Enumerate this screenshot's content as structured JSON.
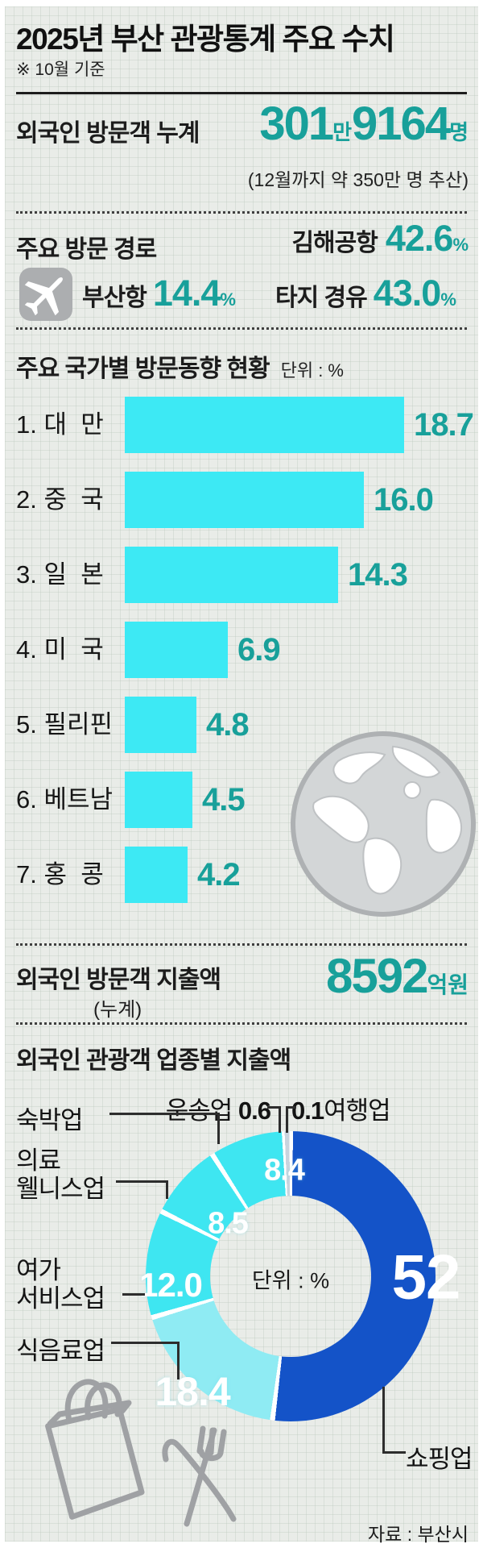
{
  "header": {
    "title": "2025년 부산 관광통계 주요 수치",
    "note": "※ 10월 기준"
  },
  "visitors": {
    "label": "외국인 방문객 누계",
    "value_main": "301",
    "unit_mid": "만",
    "value_sub": "9164",
    "unit_end": "명",
    "estimate_note": "(12월까지 약 350만 명 추산)"
  },
  "routes": {
    "label": "주요 방문 경로",
    "items": [
      {
        "name": "김해공항",
        "value": "42.6",
        "unit": "%"
      },
      {
        "name": "부산항",
        "value": "14.4",
        "unit": "%"
      },
      {
        "name": "타지 경유",
        "value": "43.0",
        "unit": "%"
      }
    ]
  },
  "country_chart": {
    "title": "주요 국가별 방문동향 현황",
    "unit_label": "단위 : %",
    "bar_color": "#3de9f4",
    "rows": [
      {
        "label": "1. 대  만",
        "value": 18.7,
        "display": "18.7"
      },
      {
        "label": "2. 중  국",
        "value": 16.0,
        "display": "16.0"
      },
      {
        "label": "3. 일  본",
        "value": 14.3,
        "display": "14.3"
      },
      {
        "label": "4. 미  국",
        "value": 6.9,
        "display": "6.9"
      },
      {
        "label": "5. 필리핀",
        "value": 4.8,
        "display": "4.8"
      },
      {
        "label": "6. 베트남",
        "value": 4.5,
        "display": "4.5"
      },
      {
        "label": "7. 홍  콩",
        "value": 4.2,
        "display": "4.2"
      }
    ]
  },
  "spending": {
    "label": "외국인 방문객 지출액",
    "sublabel": "(누계)",
    "value": "8592",
    "unit1": "억",
    "unit2": " 원"
  },
  "industry_chart": {
    "title": "외국인 관광객 업종별 지출액",
    "center_label": "단위 : %",
    "segments": [
      {
        "name": "쇼핑업",
        "value": 52,
        "display": "52",
        "color": "#1453c8"
      },
      {
        "name": "식음료업",
        "value": 18.4,
        "display": "18.4",
        "color": "#8febf3"
      },
      {
        "name": "여가 서비스업",
        "value": 12.0,
        "display": "12.0",
        "color": "#3ee6f1"
      },
      {
        "name": "의료 웰니스업",
        "value": 8.5,
        "display": "8.5",
        "color": "#3ee6f1"
      },
      {
        "name": "숙박업",
        "value": 8.4,
        "display": "8.4",
        "color": "#3ee6f1"
      },
      {
        "name": "운송업",
        "value": 0.6,
        "display": "0.6",
        "color": "#c9d4de"
      },
      {
        "name": "여행업",
        "value": 0.1,
        "display": "0.1",
        "color": "#e8f0f4"
      }
    ],
    "callouts": {
      "transport": {
        "name": "운송업 ",
        "value": "0.6"
      },
      "travel": {
        "value": "0.1",
        "name": "여행업"
      },
      "lodging": {
        "name": "숙박업"
      },
      "medical": {
        "line1": "의료",
        "line2": "웰니스업"
      },
      "leisure": {
        "line1": "여가",
        "line2": "서비스업"
      },
      "food": {
        "name": "식음료업"
      },
      "shopping": {
        "name": "쇼핑업"
      }
    }
  },
  "source": "자료 : 부산시",
  "colors": {
    "accent_teal": "#18a09a",
    "bar_cyan": "#3de9f4",
    "donut_blue": "#1453c8",
    "donut_light_cyan": "#8febf3",
    "icon_gray": "#a9abae"
  },
  "chart_data": [
    {
      "type": "bar",
      "orientation": "horizontal",
      "title": "주요 국가별 방문동향 현황",
      "unit": "%",
      "categories": [
        "대만",
        "중국",
        "일본",
        "미국",
        "필리핀",
        "베트남",
        "홍콩"
      ],
      "values": [
        18.7,
        16.0,
        14.3,
        6.9,
        4.8,
        4.5,
        4.2
      ],
      "xlim": [
        0,
        20
      ],
      "bar_color": "#3de9f4",
      "value_labels": true
    },
    {
      "type": "pie",
      "subtype": "donut",
      "title": "외국인 관광객 업종별 지출액",
      "unit": "%",
      "labels": [
        "쇼핑업",
        "식음료업",
        "여가 서비스업",
        "의료 웰니스업",
        "숙박업",
        "운송업",
        "여행업"
      ],
      "values": [
        52,
        18.4,
        12.0,
        8.5,
        8.4,
        0.6,
        0.1
      ],
      "colors": [
        "#1453c8",
        "#8febf3",
        "#3ee6f1",
        "#3ee6f1",
        "#3ee6f1",
        "#c9d4de",
        "#e8f0f4"
      ],
      "start": "top",
      "direction": "clockwise",
      "center_label": "단위 : %"
    }
  ]
}
